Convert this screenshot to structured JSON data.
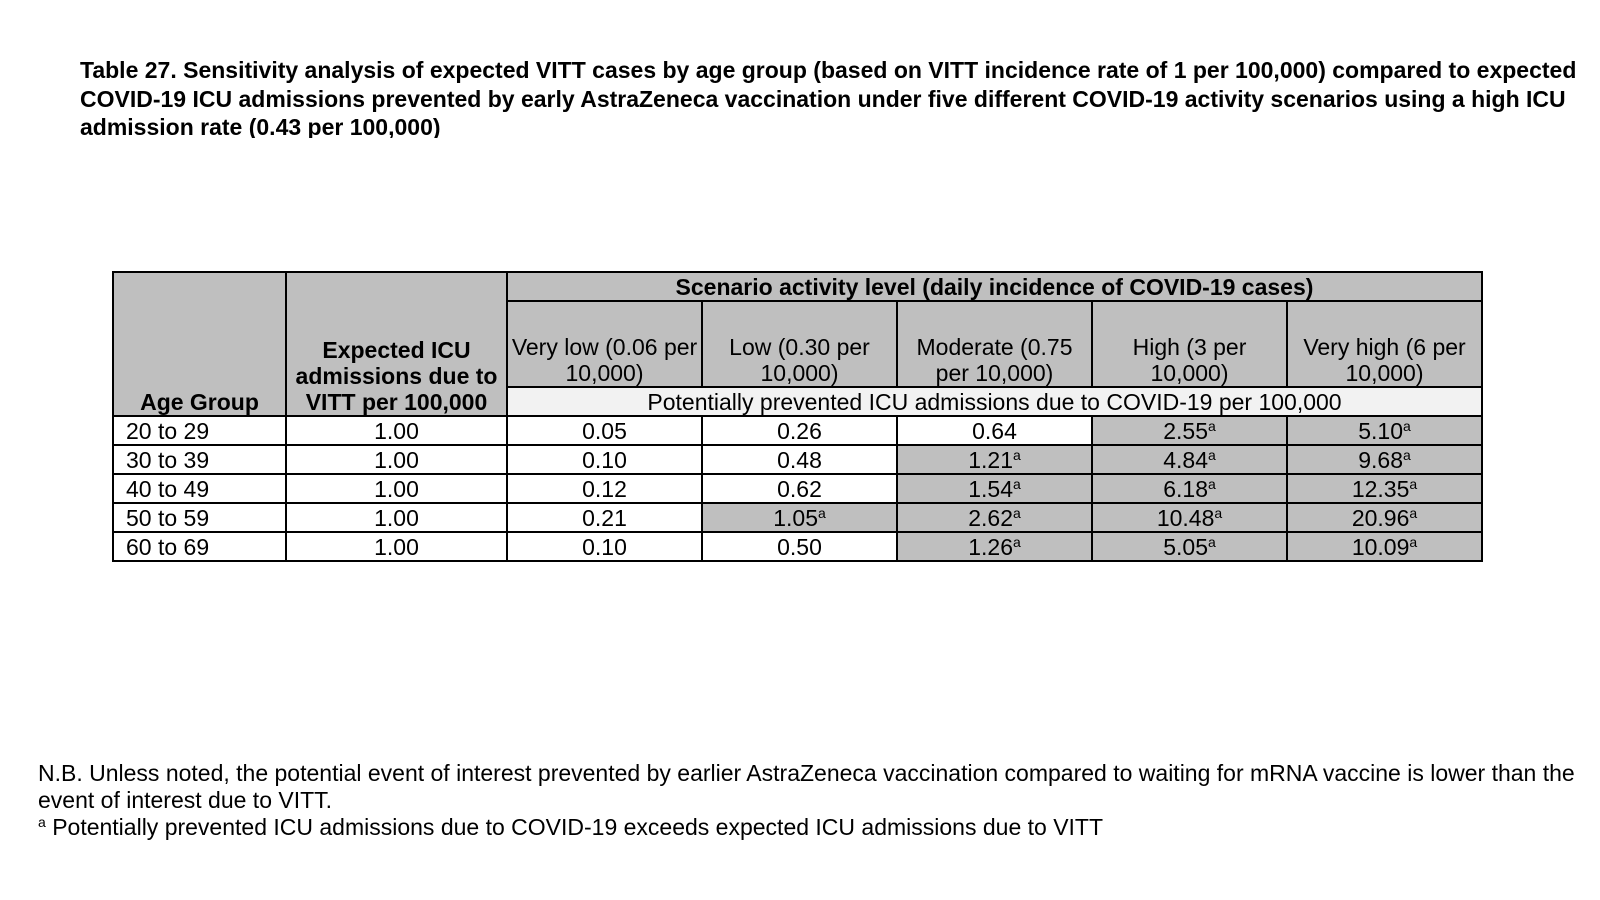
{
  "caption": "Table 27. Sensitivity analysis of expected VITT cases by age group (based on VITT incidence rate of 1 per 100,000) compared to expected COVID-19 ICU admissions prevented by early AstraZeneca vaccination under five different COVID-19 activity scenarios using a high ICU admission rate (0.43 per 100,000)",
  "table": {
    "col_age": "Age Group",
    "col_expected": "Expected ICU admissions due to VITT per 100,000",
    "scenario_header": "Scenario activity level (daily incidence of COVID-19 cases)",
    "scenarios": [
      "Very low (0.06 per 10,000)",
      "Low (0.30 per 10,000)",
      "Moderate (0.75 per 10,000)",
      "High (3 per 10,000)",
      "Very high (6 per 10,000)"
    ],
    "subheader": "Potentially prevented ICU admissions due to COVID-19 per 100,000",
    "footnote_mark": "a",
    "rows": [
      {
        "age": "20 to 29",
        "expected": "1.00",
        "values": [
          {
            "v": "0.05",
            "exceeds": false
          },
          {
            "v": "0.26",
            "exceeds": false
          },
          {
            "v": "0.64",
            "exceeds": false
          },
          {
            "v": "2.55",
            "exceeds": true
          },
          {
            "v": "5.10",
            "exceeds": true
          }
        ]
      },
      {
        "age": "30 to 39",
        "expected": "1.00",
        "values": [
          {
            "v": "0.10",
            "exceeds": false
          },
          {
            "v": "0.48",
            "exceeds": false
          },
          {
            "v": "1.21",
            "exceeds": true
          },
          {
            "v": "4.84",
            "exceeds": true
          },
          {
            "v": "9.68",
            "exceeds": true
          }
        ]
      },
      {
        "age": "40 to 49",
        "expected": "1.00",
        "values": [
          {
            "v": "0.12",
            "exceeds": false
          },
          {
            "v": "0.62",
            "exceeds": false
          },
          {
            "v": "1.54",
            "exceeds": true
          },
          {
            "v": "6.18",
            "exceeds": true
          },
          {
            "v": "12.35",
            "exceeds": true
          }
        ]
      },
      {
        "age": "50 to 59",
        "expected": "1.00",
        "values": [
          {
            "v": "0.21",
            "exceeds": false
          },
          {
            "v": "1.05",
            "exceeds": true
          },
          {
            "v": "2.62",
            "exceeds": true
          },
          {
            "v": "10.48",
            "exceeds": true
          },
          {
            "v": "20.96",
            "exceeds": true
          }
        ]
      },
      {
        "age": "60 to 69",
        "expected": "1.00",
        "values": [
          {
            "v": "0.10",
            "exceeds": false
          },
          {
            "v": "0.50",
            "exceeds": false
          },
          {
            "v": "1.26",
            "exceeds": true
          },
          {
            "v": "5.05",
            "exceeds": true
          },
          {
            "v": "10.09",
            "exceeds": true
          }
        ]
      }
    ]
  },
  "notes": {
    "nb": "N.B. Unless noted, the potential event of interest prevented by earlier AstraZeneca vaccination compared to waiting for mRNA vaccine is lower than the event of interest due to VITT.",
    "footnote_mark": "a",
    "footnote": "Potentially prevented ICU admissions due to COVID-19 exceeds expected ICU admissions due to VITT"
  },
  "colors": {
    "header_grey": "#bfbfbf",
    "subheader_light": "#f2f2f2",
    "highlight_grey": "#bfbfbf"
  }
}
